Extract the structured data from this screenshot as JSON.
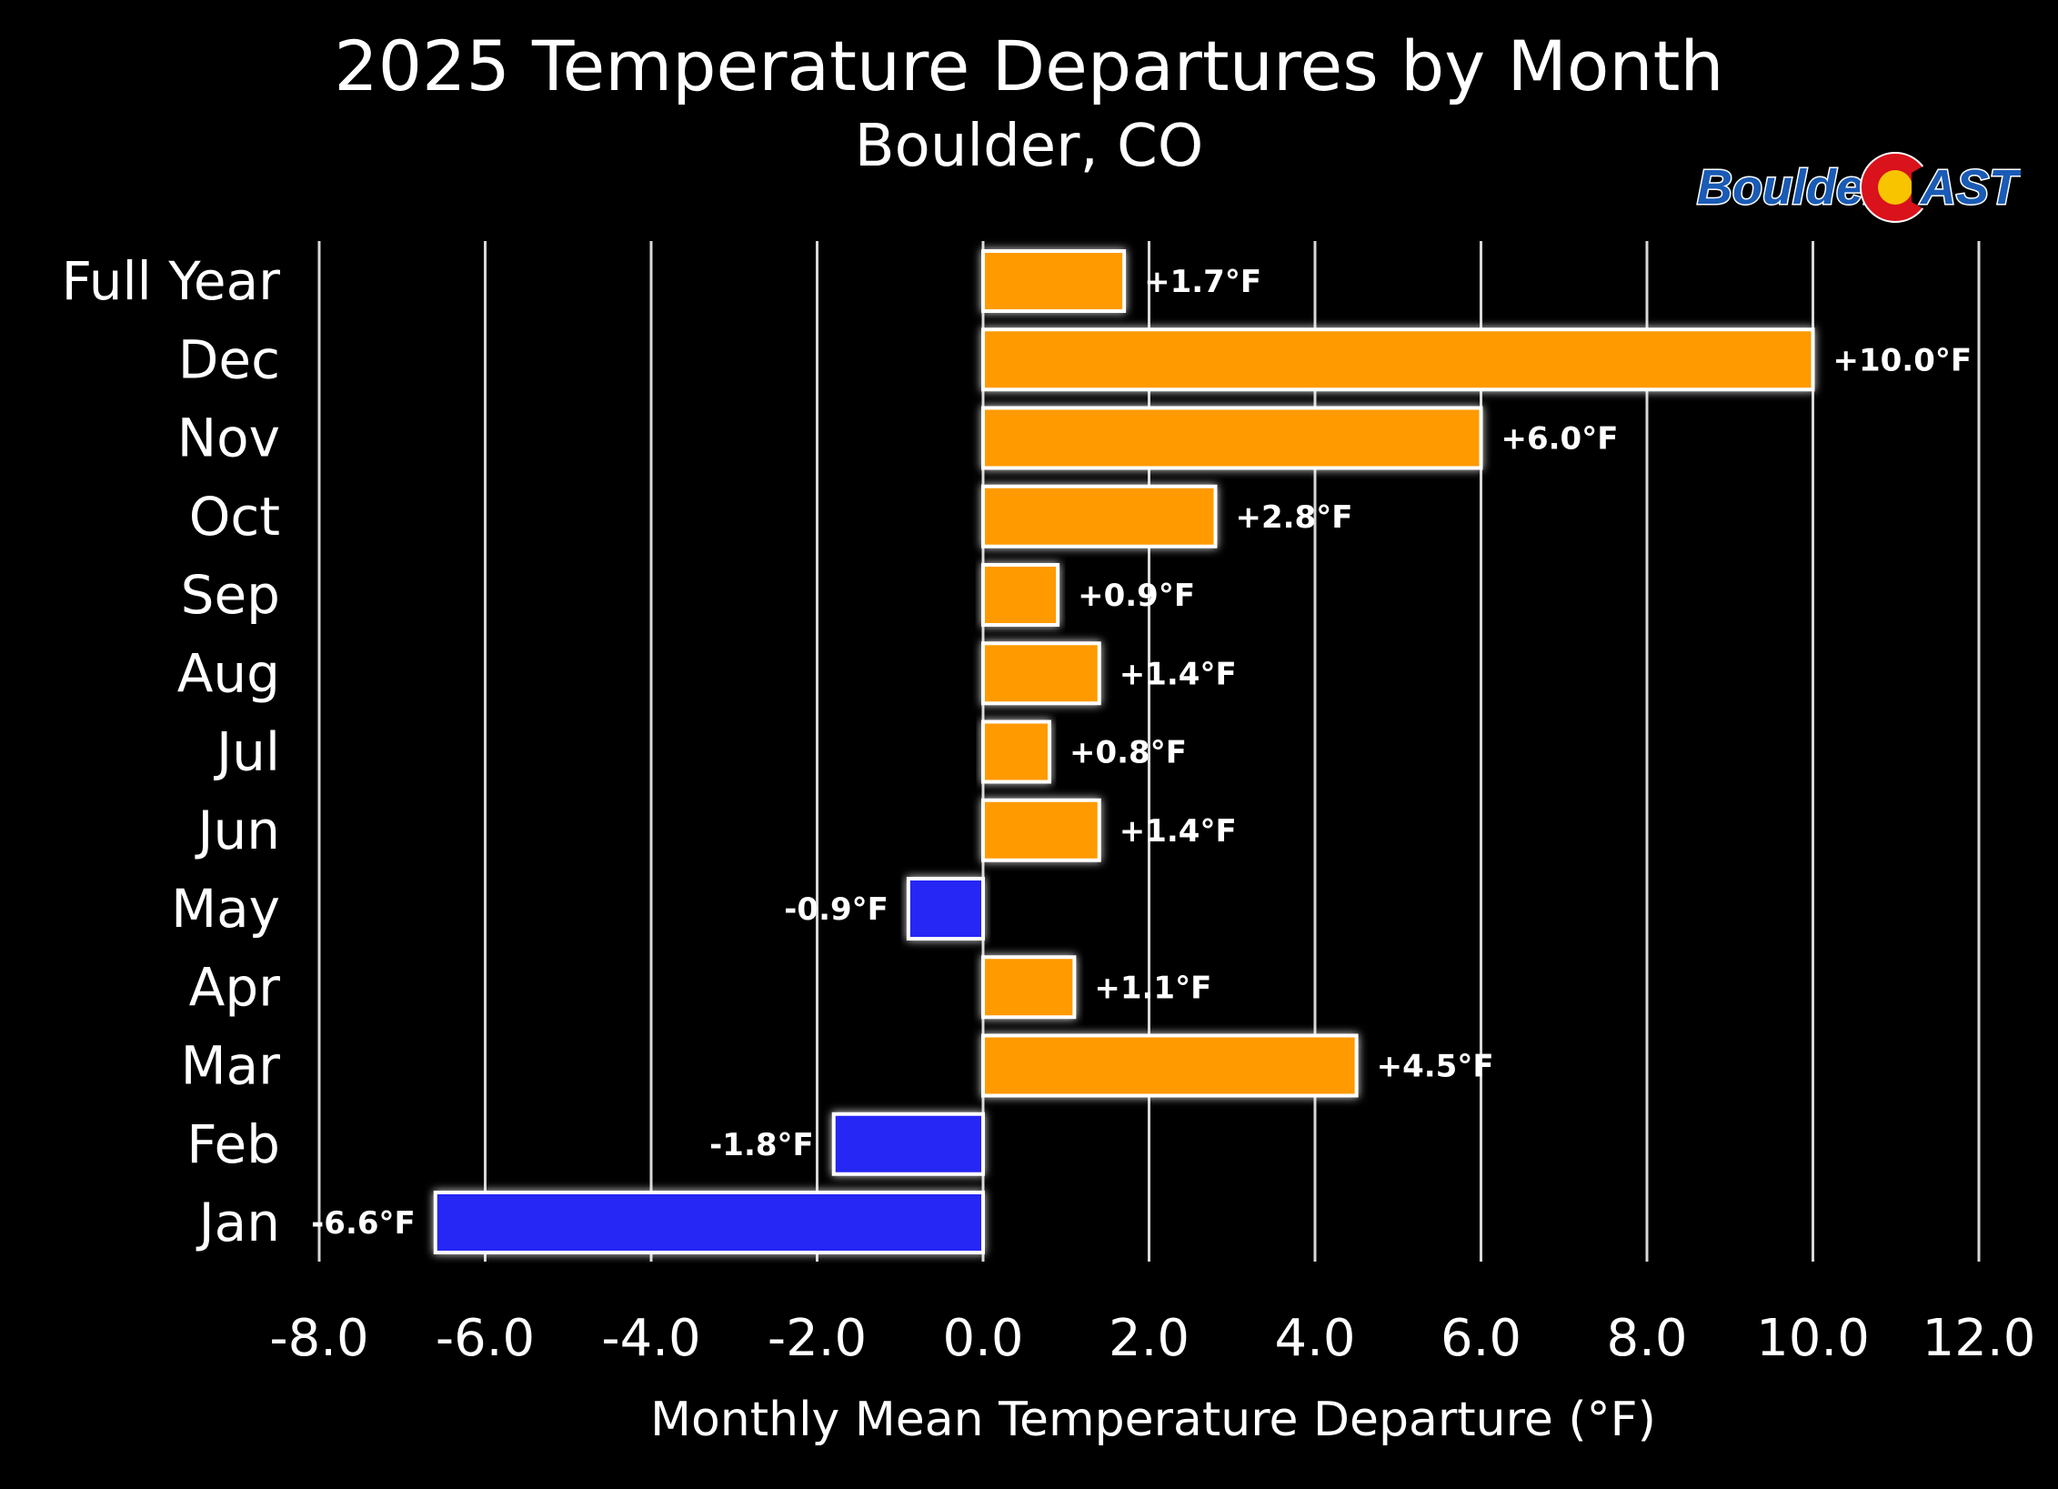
{
  "header": {
    "title": "2025 Temperature Departures by Month",
    "subtitle": "Boulder, CO"
  },
  "logo": {
    "text_left": "Boulder",
    "text_right": "AST",
    "icon": "colorado-flag-c-icon",
    "colors": {
      "text": "#1a5bb5",
      "ring": "#d9121b",
      "center": "#f8c400"
    }
  },
  "chart_data": {
    "type": "bar",
    "orientation": "horizontal",
    "title": "2025 Temperature Departures by Month",
    "subtitle": "Boulder, CO",
    "xlabel": "Monthly Mean Temperature Departure (°F)",
    "ylabel": "",
    "xlim": [
      -8,
      12
    ],
    "xticks": [
      -8,
      -6,
      -4,
      -2,
      0,
      2,
      4,
      6,
      8,
      10,
      12
    ],
    "xtick_labels": [
      "-8.0",
      "-6.0",
      "-4.0",
      "-2.0",
      "0.0",
      "2.0",
      "4.0",
      "6.0",
      "8.0",
      "10.0",
      "12.0"
    ],
    "grid": "vertical",
    "categories": [
      "Full Year",
      "Dec",
      "Nov",
      "Oct",
      "Sep",
      "Aug",
      "Jul",
      "Jun",
      "May",
      "Apr",
      "Mar",
      "Feb",
      "Jan"
    ],
    "values": [
      1.7,
      10.0,
      6.0,
      2.8,
      0.9,
      1.4,
      0.8,
      1.4,
      -0.9,
      1.1,
      4.5,
      -1.8,
      -6.6
    ],
    "data_labels": [
      "+1.7°F",
      "+10.0°F",
      "+6.0°F",
      "+2.8°F",
      "+0.9°F",
      "+1.4°F",
      "+0.8°F",
      "+1.4°F",
      "-0.9°F",
      "+1.1°F",
      "+4.5°F",
      "-1.8°F",
      "-6.6°F"
    ],
    "colors": {
      "positive": "#ff9a00",
      "negative": "#2828f5",
      "background": "#000000",
      "grid": "#d8d8d8",
      "bar_outline": "#ffffff"
    }
  }
}
